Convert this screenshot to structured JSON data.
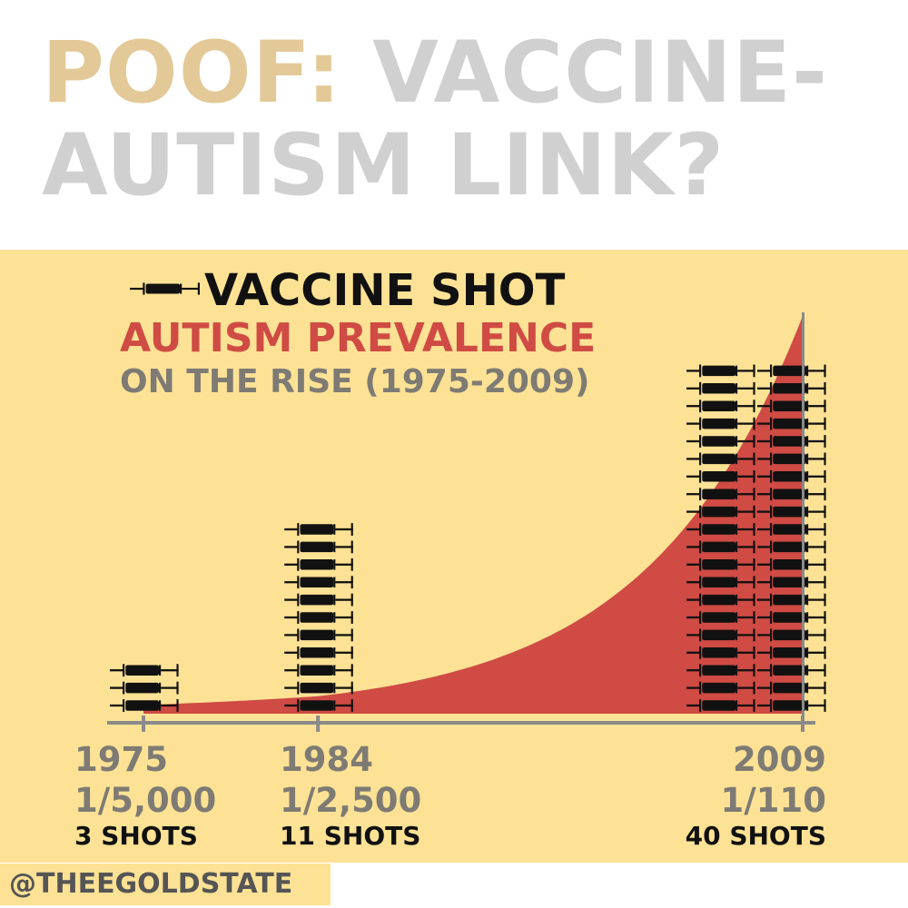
{
  "headline": {
    "part1": "POOF:",
    "part2": "VACCINE-",
    "part3": "AUTISM LINK?"
  },
  "legend": {
    "shot_label": "VACCINE SHOT",
    "autism_label": "AUTISM PREVALENCE",
    "rise_label": "ON THE RISE (1975-2009)"
  },
  "colors": {
    "gold": "#e3c997",
    "grey_headline": "#d0d0d0",
    "panel": "#fde295",
    "autism_red": "#cf4b44",
    "syringe": "#111111",
    "label_grey": "#7e7b74"
  },
  "icons": {
    "shot": "syringe-icon"
  },
  "chart_data": {
    "type": "area",
    "x": [
      1975,
      1984,
      2009
    ],
    "series": [
      {
        "name": "AUTISM PREVALENCE",
        "labels": [
          "1/5,000",
          "1/2,500",
          "1/110"
        ],
        "values": [
          0.0002,
          0.0004,
          0.00909
        ]
      },
      {
        "name": "VACCINE SHOT",
        "labels": [
          "3 SHOTS",
          "11 SHOTS",
          "40 SHOTS"
        ],
        "values": [
          3,
          11,
          40
        ]
      }
    ],
    "xlim": [
      1975,
      2009
    ]
  },
  "labels": [
    {
      "year": "1975",
      "prevalence": "1/5,000",
      "shots": "3 SHOTS"
    },
    {
      "year": "1984",
      "prevalence": "1/2,500",
      "shots": "11 SHOTS"
    },
    {
      "year": "2009",
      "prevalence": "1/110",
      "shots": "40 SHOTS"
    }
  ],
  "footer": {
    "handle": "@THEEGOLDSTATE"
  }
}
